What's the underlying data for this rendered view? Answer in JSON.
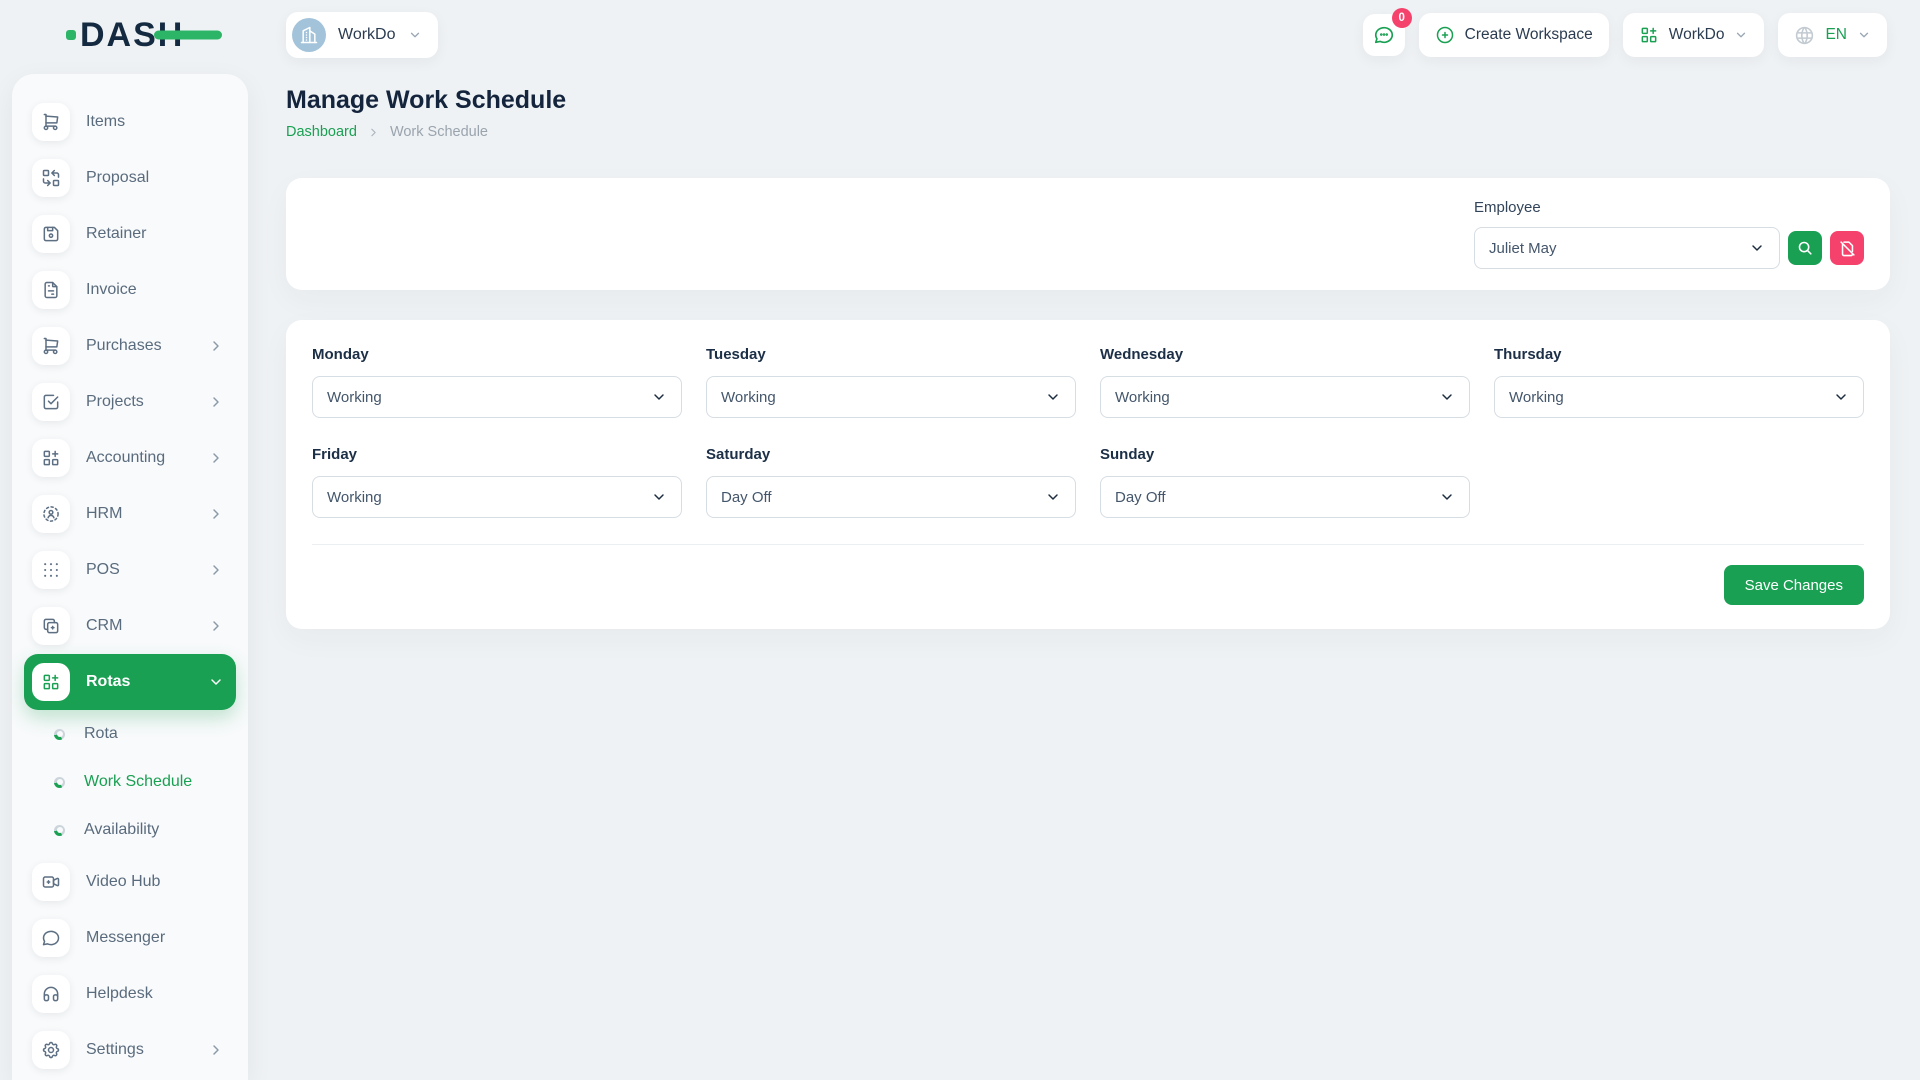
{
  "brand": {
    "logo_text": "DASH"
  },
  "topbar": {
    "workspace": {
      "label": "WorkDo"
    },
    "messages": {
      "badge": "0"
    },
    "create_workspace": {
      "label": "Create Workspace"
    },
    "workspace_menu": {
      "label": "WorkDo"
    },
    "language": {
      "code": "EN"
    }
  },
  "page": {
    "title": "Manage Work Schedule",
    "breadcrumb": {
      "home": "Dashboard",
      "current": "Work Schedule"
    }
  },
  "filter": {
    "employee": {
      "label": "Employee",
      "value": "Juliet May"
    }
  },
  "schedule": {
    "days": [
      {
        "label": "Monday",
        "value": "Working"
      },
      {
        "label": "Tuesday",
        "value": "Working"
      },
      {
        "label": "Wednesday",
        "value": "Working"
      },
      {
        "label": "Thursday",
        "value": "Working"
      },
      {
        "label": "Friday",
        "value": "Working"
      },
      {
        "label": "Saturday",
        "value": "Day Off"
      },
      {
        "label": "Sunday",
        "value": "Day Off"
      }
    ],
    "save_label": "Save Changes"
  },
  "sidebar": {
    "items": [
      {
        "label": "Items",
        "icon": "cart"
      },
      {
        "label": "Proposal",
        "icon": "replace"
      },
      {
        "label": "Retainer",
        "icon": "floppy"
      },
      {
        "label": "Invoice",
        "icon": "file-invoice"
      },
      {
        "label": "Purchases",
        "icon": "cart",
        "expandable": true
      },
      {
        "label": "Projects",
        "icon": "checkbox",
        "expandable": true
      },
      {
        "label": "Accounting",
        "icon": "apps",
        "expandable": true
      },
      {
        "label": "HRM",
        "icon": "hrm",
        "expandable": true
      },
      {
        "label": "POS",
        "icon": "grid-dots",
        "expandable": true
      },
      {
        "label": "CRM",
        "icon": "copy-plus",
        "expandable": true
      },
      {
        "label": "Rotas",
        "icon": "apps",
        "active": true,
        "expanded": true
      },
      {
        "label": "Rota",
        "sub": true
      },
      {
        "label": "Work Schedule",
        "sub": true,
        "active": true
      },
      {
        "label": "Availability",
        "sub": true
      },
      {
        "label": "Video Hub",
        "icon": "video"
      },
      {
        "label": "Messenger",
        "icon": "message"
      },
      {
        "label": "Helpdesk",
        "icon": "headset"
      },
      {
        "label": "Settings",
        "icon": "gear",
        "expandable": true
      }
    ]
  },
  "colors": {
    "accent_green": "#1aa053",
    "logo_green": "#2db567",
    "danger_pink": "#f5426c",
    "navy_text": "#14243c",
    "page_bg": "#eff2f4"
  }
}
